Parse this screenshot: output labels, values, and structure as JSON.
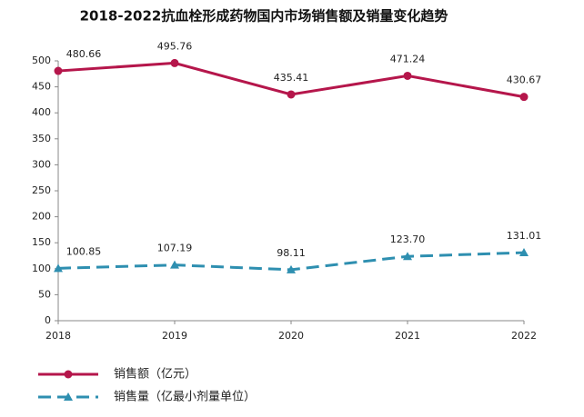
{
  "chart_data": {
    "type": "line",
    "title": "2018-2022抗血栓形成药物国内市场销售额及销量变化趋势",
    "categories": [
      "2018",
      "2019",
      "2020",
      "2021",
      "2022"
    ],
    "series": [
      {
        "name": "销售额（亿元）",
        "color": "#b5164b",
        "marker": "circle",
        "dash": false,
        "values": [
          480.66,
          495.76,
          435.41,
          471.24,
          430.67
        ],
        "value_labels": [
          "480.66",
          "495.76",
          "435.41",
          "471.24",
          "430.67"
        ]
      },
      {
        "name": "销售量（亿最小剂量单位）",
        "color": "#2e8fb0",
        "marker": "triangle",
        "dash": true,
        "values": [
          100.85,
          107.19,
          98.11,
          123.7,
          131.01
        ],
        "value_labels": [
          "100.85",
          "107.19",
          "98.11",
          "123.70",
          "131.01"
        ]
      }
    ],
    "ylim": [
      0,
      500
    ],
    "yticks": [
      0,
      50,
      100,
      150,
      200,
      250,
      300,
      350,
      400,
      450,
      500
    ],
    "grid": false
  }
}
